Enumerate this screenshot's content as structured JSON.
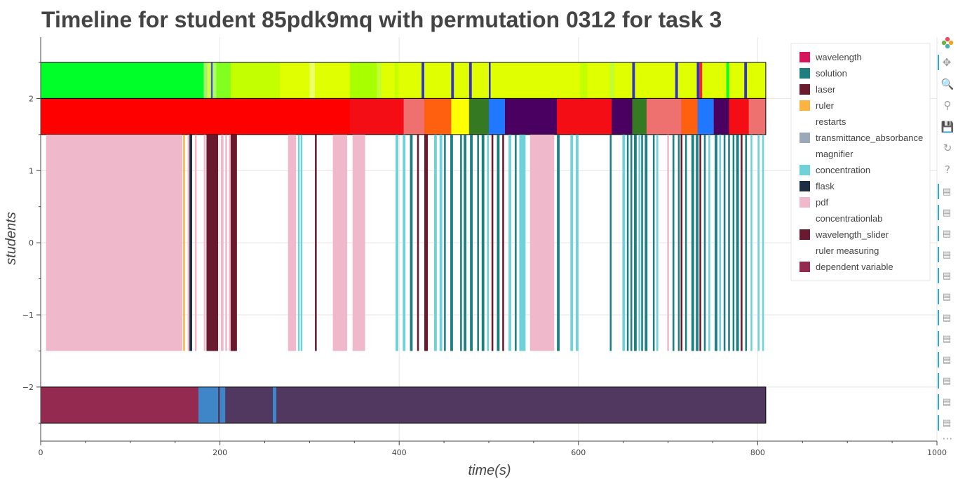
{
  "chart_data": {
    "type": "timeline",
    "title": "Timeline for student 85pdk9mq with permutation 0312 for task 3",
    "xlabel": "time(s)",
    "ylabel": "students",
    "xlim": [
      0,
      1000
    ],
    "ylim": [
      -2.75,
      2.85
    ],
    "x_ticks": [
      0,
      200,
      400,
      600,
      800,
      1000
    ],
    "x_tick_labels": [
      "0",
      "200",
      "400",
      "600",
      "800",
      "1000"
    ],
    "y_ticks": [
      -2,
      -1,
      0,
      1,
      2
    ],
    "y_tick_labels": [
      "−2",
      "−1",
      "0",
      "1",
      "2"
    ],
    "grid": true,
    "legend_position": "top-right",
    "legend": [
      {
        "label": "wavelength",
        "color": "#d6165c"
      },
      {
        "label": "solution",
        "color": "#1f7f80"
      },
      {
        "label": "laser",
        "color": "#6a1b2e"
      },
      {
        "label": "ruler",
        "color": "#fbb440"
      },
      {
        "label": "restarts",
        "color": "#ffffff"
      },
      {
        "label": "transmittance_absorbance",
        "color": "#9aa8b8"
      },
      {
        "label": "magnifier",
        "color": "#ffffff"
      },
      {
        "label": "concentration",
        "color": "#6fd2d8"
      },
      {
        "label": "flask",
        "color": "#1c2e44"
      },
      {
        "label": "pdf",
        "color": "#f0b8cb"
      },
      {
        "label": "concentrationlab",
        "color": "#ffffff"
      },
      {
        "label": "wavelength_slider",
        "color": "#6a1a2e"
      },
      {
        "label": "ruler measuring",
        "color": "#ffffff"
      },
      {
        "label": "dependent variable",
        "color": "#952a50"
      }
    ],
    "rows": [
      {
        "y_range": [
          2,
          2.5
        ],
        "base_color": "#e0ff00",
        "segments": [
          {
            "x": [
              0,
              182
            ],
            "color": "#00ff28"
          },
          {
            "x": [
              182,
              186
            ],
            "color": "#a8f070"
          },
          {
            "x": [
              186,
              190
            ],
            "color": "#d0ff40"
          },
          {
            "x": [
              190,
              192
            ],
            "color": "#3d55e8"
          },
          {
            "x": [
              192,
              196
            ],
            "color": "#b0ff60"
          },
          {
            "x": [
              196,
              212
            ],
            "color": "#80ff20"
          },
          {
            "x": [
              212,
              267
            ],
            "color": "#c4ff00"
          },
          {
            "x": [
              300,
              306
            ],
            "color": "#eaff6a"
          },
          {
            "x": [
              345,
              375
            ],
            "color": "#a8ff00"
          },
          {
            "x": [
              375,
              380
            ],
            "color": "#c0ff30"
          },
          {
            "x": [
              395,
              399
            ],
            "color": "#c4ff00"
          },
          {
            "x": [
              425,
              428
            ],
            "color": "#3333cc"
          },
          {
            "x": [
              458,
              461
            ],
            "color": "#3333cc"
          },
          {
            "x": [
              478,
              481
            ],
            "color": "#3333cc"
          },
          {
            "x": [
              500,
              502
            ],
            "color": "#3333cc"
          },
          {
            "x": [
              602,
              610
            ],
            "color": "#c4ff00"
          },
          {
            "x": [
              635,
              640
            ],
            "color": "#c0ff30"
          },
          {
            "x": [
              660,
              663
            ],
            "color": "#3333cc"
          },
          {
            "x": [
              708,
              711
            ],
            "color": "#3333cc"
          },
          {
            "x": [
              732,
              735
            ],
            "color": "#3333cc"
          },
          {
            "x": [
              735,
              738
            ],
            "color": "#ff2020"
          },
          {
            "x": [
              765,
              768
            ],
            "color": "#00ff28"
          },
          {
            "x": [
              785,
              788
            ],
            "color": "#3333cc"
          }
        ]
      },
      {
        "y_range": [
          1.5,
          2
        ],
        "base_color": "#ff0000",
        "segments": [
          {
            "x": [
              0,
              345
            ],
            "color": "#ff0000"
          },
          {
            "x": [
              345,
              405
            ],
            "color": "#f40d15"
          },
          {
            "x": [
              405,
              428
            ],
            "color": "#ee7170"
          },
          {
            "x": [
              428,
              458
            ],
            "color": "#ff6010"
          },
          {
            "x": [
              458,
              478
            ],
            "color": "#ffff00"
          },
          {
            "x": [
              478,
              500
            ],
            "color": "#357a22"
          },
          {
            "x": [
              500,
              518
            ],
            "color": "#1f78ff"
          },
          {
            "x": [
              518,
              576
            ],
            "color": "#4a0060"
          },
          {
            "x": [
              576,
              637
            ],
            "color": "#f40d15"
          },
          {
            "x": [
              637,
              660
            ],
            "color": "#4a0060"
          },
          {
            "x": [
              660,
              676
            ],
            "color": "#357a22"
          },
          {
            "x": [
              676,
              715
            ],
            "color": "#ee7170"
          },
          {
            "x": [
              715,
              733
            ],
            "color": "#ff6010"
          },
          {
            "x": [
              733,
              751
            ],
            "color": "#1f78ff"
          },
          {
            "x": [
              751,
              768
            ],
            "color": "#4a0060"
          },
          {
            "x": [
              768,
              790
            ],
            "color": "#f40d15"
          },
          {
            "x": [
              790,
              809
            ],
            "color": "#ee7170"
          }
        ]
      },
      {
        "y_range": [
          -1.5,
          1.5
        ],
        "base_color": "#ffffff",
        "segments": [
          {
            "x": [
              6,
              158
            ],
            "color": "#f0b8cb"
          },
          {
            "x": [
              159,
              161
            ],
            "color": "#fbb440"
          },
          {
            "x": [
              164,
              166
            ],
            "color": "#f0b8cb"
          },
          {
            "x": [
              166,
              169
            ],
            "color": "#1c2e44"
          },
          {
            "x": [
              172,
              174
            ],
            "color": "#f0b8cb"
          },
          {
            "x": [
              182,
              184
            ],
            "color": "#f0b8cb"
          },
          {
            "x": [
              185,
              198
            ],
            "color": "#6a1a2e"
          },
          {
            "x": [
              201,
              204
            ],
            "color": "#f0b8cb"
          },
          {
            "x": [
              206,
              208
            ],
            "color": "#f0b8cb"
          },
          {
            "x": [
              210,
              212
            ],
            "color": "#f0b8cb"
          },
          {
            "x": [
              212,
              219
            ],
            "color": "#6a1a2e"
          },
          {
            "x": [
              276,
              285
            ],
            "color": "#f0b8cb"
          },
          {
            "x": [
              287,
              289
            ],
            "color": "#6fd2d8"
          },
          {
            "x": [
              290,
              292
            ],
            "color": "#6fd2d8"
          },
          {
            "x": [
              306,
              308
            ],
            "color": "#6a1a2e"
          },
          {
            "x": [
              326,
              342
            ],
            "color": "#f0b8cb"
          },
          {
            "x": [
              348,
              362
            ],
            "color": "#f0b8cb"
          },
          {
            "x": [
              396,
              399
            ],
            "color": "#6fd2d8"
          },
          {
            "x": [
              404,
              407
            ],
            "color": "#6fd2d8"
          },
          {
            "x": [
              412,
              415
            ],
            "color": "#1f7f80"
          },
          {
            "x": [
              420,
              422
            ],
            "color": "#6a1a2e"
          },
          {
            "x": [
              428,
              432
            ],
            "color": "#6a1a2e"
          },
          {
            "x": [
              439,
              442
            ],
            "color": "#6fd2d8"
          },
          {
            "x": [
              445,
              448
            ],
            "color": "#6fd2d8"
          },
          {
            "x": [
              450,
              452
            ],
            "color": "#1f7f80"
          },
          {
            "x": [
              457,
              460
            ],
            "color": "#1f7f80"
          },
          {
            "x": [
              468,
              470
            ],
            "color": "#1f7f80"
          },
          {
            "x": [
              472,
              475
            ],
            "color": "#1f7f80"
          },
          {
            "x": [
              479,
              482
            ],
            "color": "#1f7f80"
          },
          {
            "x": [
              487,
              489
            ],
            "color": "#1f7f80"
          },
          {
            "x": [
              492,
              495
            ],
            "color": "#1f7f80"
          },
          {
            "x": [
              498,
              500
            ],
            "color": "#6fd2d8"
          },
          {
            "x": [
              503,
              505
            ],
            "color": "#6a1a2e"
          },
          {
            "x": [
              509,
              512
            ],
            "color": "#1f7f80"
          },
          {
            "x": [
              515,
              517
            ],
            "color": "#6a1a2e"
          },
          {
            "x": [
              522,
              525
            ],
            "color": "#6fd2d8"
          },
          {
            "x": [
              529,
              531
            ],
            "color": "#1f7f80"
          },
          {
            "x": [
              534,
              541
            ],
            "color": "#6fd2d8"
          },
          {
            "x": [
              546,
              573
            ],
            "color": "#f0b8cb"
          },
          {
            "x": [
              576,
              579
            ],
            "color": "#1f7f80"
          },
          {
            "x": [
              591,
              594
            ],
            "color": "#6fd2d8"
          },
          {
            "x": [
              597,
              600
            ],
            "color": "#6fd2d8"
          },
          {
            "x": [
              635,
              637
            ],
            "color": "#1f7f80"
          },
          {
            "x": [
              649,
              652
            ],
            "color": "#6fd2d8"
          },
          {
            "x": [
              654,
              656
            ],
            "color": "#1f7f80"
          },
          {
            "x": [
              658,
              660
            ],
            "color": "#1f7f80"
          },
          {
            "x": [
              662,
              665
            ],
            "color": "#1f7f80"
          },
          {
            "x": [
              667,
              669
            ],
            "color": "#6fd2d8"
          },
          {
            "x": [
              670,
              672
            ],
            "color": "#1f7f80"
          },
          {
            "x": [
              674,
              677
            ],
            "color": "#1f7f80"
          },
          {
            "x": [
              683,
              685
            ],
            "color": "#1f7f80"
          },
          {
            "x": [
              687,
              689
            ],
            "color": "#6fd2d8"
          },
          {
            "x": [
              699,
              701
            ],
            "color": "#f0b8cb"
          },
          {
            "x": [
              705,
              707
            ],
            "color": "#1f7f80"
          },
          {
            "x": [
              711,
              713
            ],
            "color": "#1f7f80"
          },
          {
            "x": [
              714,
              716
            ],
            "color": "#6a1a2e"
          },
          {
            "x": [
              719,
              721
            ],
            "color": "#1f7f80"
          },
          {
            "x": [
              726,
              729
            ],
            "color": "#1f7f80"
          },
          {
            "x": [
              731,
              734
            ],
            "color": "#1f7f80"
          },
          {
            "x": [
              735,
              737
            ],
            "color": "#6a1a2e"
          },
          {
            "x": [
              740,
              742
            ],
            "color": "#1f7f80"
          },
          {
            "x": [
              745,
              747
            ],
            "color": "#6fd2d8"
          },
          {
            "x": [
              752,
              755
            ],
            "color": "#1f7f80"
          },
          {
            "x": [
              757,
              759
            ],
            "color": "#6fd2d8"
          },
          {
            "x": [
              762,
              764
            ],
            "color": "#1f7f80"
          },
          {
            "x": [
              767,
              769
            ],
            "color": "#1f7f80"
          },
          {
            "x": [
              772,
              774
            ],
            "color": "#1f7f80"
          },
          {
            "x": [
              776,
              779
            ],
            "color": "#1f7f80"
          },
          {
            "x": [
              781,
              783
            ],
            "color": "#6a1a2e"
          },
          {
            "x": [
              786,
              788
            ],
            "color": "#1f7f80"
          },
          {
            "x": [
              792,
              794
            ],
            "color": "#6fd2d8"
          },
          {
            "x": [
              800,
              802
            ],
            "color": "#6fd2d8"
          },
          {
            "x": [
              805,
              807
            ],
            "color": "#6fd2d8"
          }
        ]
      },
      {
        "y_range": [
          -2.5,
          -2
        ],
        "base_color": "#513860",
        "segments": [
          {
            "x": [
              0,
              176
            ],
            "color": "#952a50"
          },
          {
            "x": [
              176,
              198
            ],
            "color": "#3f86c8"
          },
          {
            "x": [
              198,
              200
            ],
            "color": "#513860"
          },
          {
            "x": [
              200,
              206
            ],
            "color": "#3f86c8"
          },
          {
            "x": [
              206,
              259
            ],
            "color": "#513860"
          },
          {
            "x": [
              259,
              263
            ],
            "color": "#3f86c8"
          },
          {
            "x": [
              263,
              809
            ],
            "color": "#513860"
          }
        ]
      }
    ]
  },
  "toolbar": {
    "logo_icon": "bokeh-logo-icon",
    "tools": [
      {
        "name": "pan-icon",
        "glyph": "✥"
      },
      {
        "name": "box-zoom-icon",
        "glyph": "🔍"
      },
      {
        "name": "wheel-zoom-icon",
        "glyph": "⚲"
      },
      {
        "name": "save-icon",
        "glyph": "💾"
      },
      {
        "name": "reset-icon",
        "glyph": "↻"
      },
      {
        "name": "help-icon",
        "glyph": "?"
      }
    ],
    "hover_tool_count": 12,
    "hover_glyph": "▤",
    "more_glyph": "⋯"
  }
}
